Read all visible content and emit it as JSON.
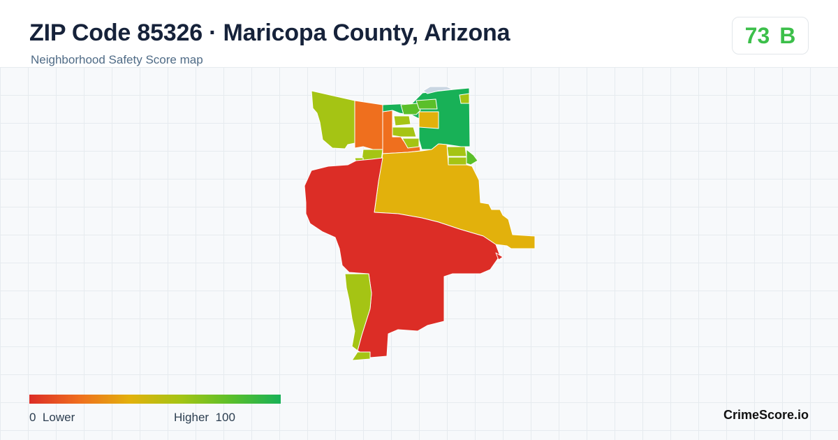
{
  "header": {
    "title": "ZIP Code 85326 · Maricopa County, Arizona",
    "subtitle": "Neighborhood Safety Score map"
  },
  "score": {
    "value": "73",
    "grade": "B",
    "color": "#3cbf4a"
  },
  "legend": {
    "min_value": "0",
    "min_label": "Lower",
    "max_label": "Higher",
    "max_value": "100",
    "colors": [
      "#dc2d26",
      "#ef6f1e",
      "#e2b10c",
      "#a5c414",
      "#5bbf2a",
      "#18b157"
    ]
  },
  "brand": "CrimeScore.io",
  "map": {
    "region_colors": {
      "low": "#dc2d26",
      "below_average": "#ef6f1e",
      "average": "#e2b10c",
      "above_average": "#a5c414",
      "good": "#5bbf2a",
      "high": "#18b157",
      "water": "#c9d6e2"
    }
  }
}
